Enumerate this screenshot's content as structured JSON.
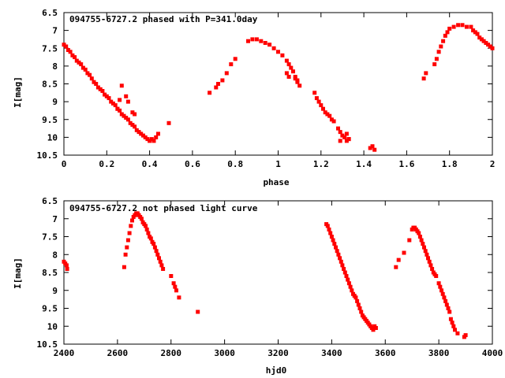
{
  "chart_data": [
    {
      "type": "scatter",
      "title": "094755-6727.2 phased with P=341.0day",
      "xlabel": "phase",
      "ylabel": "I[mag]",
      "xlim": [
        0,
        2
      ],
      "ylim": [
        10.5,
        6.5
      ],
      "y_inverted": true,
      "xticks": [
        "0",
        "0.2",
        "0.4",
        "0.6",
        "0.8",
        "1",
        "1.2",
        "1.4",
        "1.6",
        "1.8",
        "2"
      ],
      "yticks": [
        "6.5",
        "7",
        "7.5",
        "8",
        "8.5",
        "9",
        "9.5",
        "10",
        "10.5"
      ],
      "grid": false,
      "marker_color": "#ff0000",
      "x": [
        0.0,
        0.01,
        0.02,
        0.03,
        0.04,
        0.05,
        0.06,
        0.07,
        0.08,
        0.09,
        0.1,
        0.11,
        0.12,
        0.13,
        0.14,
        0.15,
        0.16,
        0.17,
        0.18,
        0.19,
        0.2,
        0.21,
        0.22,
        0.23,
        0.24,
        0.25,
        0.26,
        0.27,
        0.28,
        0.29,
        0.3,
        0.31,
        0.32,
        0.33,
        0.34,
        0.35,
        0.36,
        0.37,
        0.38,
        0.39,
        0.4,
        0.41,
        0.42,
        0.43,
        0.44,
        0.49,
        0.27,
        0.29,
        0.26,
        0.3,
        0.32,
        0.33,
        0.25,
        0.68,
        0.71,
        0.72,
        0.74,
        0.76,
        0.78,
        0.8,
        0.86,
        0.88,
        0.9,
        0.92,
        0.94,
        0.96,
        0.98,
        1.0,
        1.02,
        1.04,
        1.05,
        1.06,
        1.07,
        1.08,
        1.09,
        1.1,
        1.04,
        1.05,
        1.08,
        1.09,
        1.17,
        1.18,
        1.19,
        1.2,
        1.21,
        1.22,
        1.23,
        1.24,
        1.25,
        1.26,
        1.28,
        1.29,
        1.3,
        1.31,
        1.32,
        1.33,
        1.29,
        1.32,
        1.33,
        1.43,
        1.44,
        1.45,
        1.68,
        1.69,
        1.73,
        1.74,
        1.75,
        1.76,
        1.77,
        1.78,
        1.79,
        1.8,
        1.82,
        1.84,
        1.86,
        1.88,
        1.9,
        1.91,
        1.92,
        1.93,
        1.94,
        1.95,
        1.96,
        1.97,
        1.98,
        1.99,
        2.0
      ],
      "y": [
        7.4,
        7.45,
        7.55,
        7.6,
        7.7,
        7.75,
        7.85,
        7.9,
        7.95,
        8.05,
        8.1,
        8.2,
        8.25,
        8.35,
        8.45,
        8.5,
        8.6,
        8.65,
        8.7,
        8.8,
        8.85,
        8.9,
        9.0,
        9.05,
        9.1,
        9.2,
        9.25,
        9.35,
        9.4,
        9.45,
        9.5,
        9.6,
        9.65,
        9.7,
        9.8,
        9.85,
        9.9,
        9.95,
        10.0,
        10.05,
        10.1,
        10.05,
        10.1,
        10.0,
        9.9,
        9.6,
        8.55,
        8.85,
        8.95,
        9.0,
        9.3,
        9.35,
        9.2,
        8.75,
        8.6,
        8.5,
        8.4,
        8.2,
        7.95,
        7.8,
        7.3,
        7.25,
        7.25,
        7.3,
        7.35,
        7.4,
        7.5,
        7.6,
        7.7,
        7.85,
        7.95,
        8.05,
        8.15,
        8.3,
        8.45,
        8.55,
        8.2,
        8.3,
        8.35,
        8.4,
        8.75,
        8.9,
        9.0,
        9.1,
        9.2,
        9.3,
        9.35,
        9.4,
        9.5,
        9.55,
        9.75,
        9.85,
        9.95,
        10.0,
        10.1,
        10.05,
        10.1,
        9.9,
        10.05,
        10.3,
        10.25,
        10.35,
        8.35,
        8.2,
        7.95,
        7.8,
        7.6,
        7.45,
        7.3,
        7.15,
        7.05,
        6.95,
        6.9,
        6.85,
        6.85,
        6.9,
        6.9,
        7.0,
        7.05,
        7.1,
        7.2,
        7.25,
        7.3,
        7.35,
        7.4,
        7.45,
        7.5
      ]
    },
    {
      "type": "scatter",
      "title": "094755-6727.2 not phased light curve",
      "xlabel": "hjd0",
      "ylabel": "I[mag]",
      "xlim": [
        2400,
        4000
      ],
      "ylim": [
        10.5,
        6.5
      ],
      "y_inverted": true,
      "xticks": [
        "2400",
        "2600",
        "2800",
        "3000",
        "3200",
        "3400",
        "3600",
        "3800",
        "4000"
      ],
      "yticks": [
        "6.5",
        "7",
        "7.5",
        "8",
        "8.5",
        "9",
        "9.5",
        "10",
        "10.5"
      ],
      "grid": false,
      "marker_color": "#ff0000",
      "x": [
        2400,
        2405,
        2410,
        2412,
        2625,
        2630,
        2635,
        2640,
        2645,
        2650,
        2655,
        2660,
        2665,
        2670,
        2675,
        2680,
        2685,
        2690,
        2695,
        2700,
        2705,
        2710,
        2715,
        2720,
        2725,
        2730,
        2735,
        2740,
        2745,
        2750,
        2755,
        2760,
        2765,
        2770,
        2800,
        2810,
        2815,
        2820,
        2830,
        2900,
        3380,
        3385,
        3390,
        3395,
        3400,
        3405,
        3410,
        3415,
        3420,
        3425,
        3430,
        3435,
        3440,
        3445,
        3450,
        3455,
        3460,
        3465,
        3470,
        3475,
        3480,
        3485,
        3490,
        3495,
        3500,
        3505,
        3510,
        3515,
        3520,
        3525,
        3530,
        3535,
        3540,
        3545,
        3550,
        3555,
        3560,
        3565,
        3640,
        3650,
        3670,
        3690,
        3700,
        3705,
        3710,
        3715,
        3720,
        3725,
        3730,
        3735,
        3740,
        3745,
        3750,
        3755,
        3760,
        3765,
        3770,
        3775,
        3780,
        3785,
        3790,
        3800,
        3805,
        3810,
        3815,
        3820,
        3825,
        3830,
        3835,
        3840,
        3845,
        3850,
        3855,
        3860,
        3870,
        3895,
        3900
      ],
      "y": [
        8.2,
        8.25,
        8.3,
        8.4,
        8.35,
        8.0,
        7.8,
        7.6,
        7.4,
        7.2,
        7.05,
        6.95,
        6.9,
        6.85,
        6.85,
        6.9,
        6.95,
        7.0,
        7.1,
        7.15,
        7.2,
        7.3,
        7.4,
        7.5,
        7.55,
        7.65,
        7.7,
        7.8,
        7.9,
        8.0,
        8.1,
        8.2,
        8.3,
        8.4,
        8.6,
        8.8,
        8.9,
        9.0,
        9.2,
        9.6,
        7.15,
        7.2,
        7.3,
        7.4,
        7.5,
        7.6,
        7.7,
        7.8,
        7.9,
        8.0,
        8.1,
        8.2,
        8.3,
        8.4,
        8.5,
        8.6,
        8.7,
        8.8,
        8.9,
        9.0,
        9.1,
        9.15,
        9.2,
        9.3,
        9.4,
        9.5,
        9.6,
        9.7,
        9.75,
        9.8,
        9.85,
        9.9,
        9.95,
        10.0,
        10.05,
        10.1,
        10.0,
        10.05,
        8.35,
        8.15,
        7.95,
        7.6,
        7.3,
        7.25,
        7.25,
        7.3,
        7.35,
        7.4,
        7.5,
        7.6,
        7.7,
        7.8,
        7.9,
        8.0,
        8.1,
        8.2,
        8.3,
        8.4,
        8.5,
        8.55,
        8.6,
        8.8,
        8.9,
        9.0,
        9.1,
        9.2,
        9.3,
        9.4,
        9.5,
        9.6,
        9.8,
        9.9,
        10.0,
        10.1,
        10.2,
        10.3,
        10.25
      ]
    }
  ]
}
